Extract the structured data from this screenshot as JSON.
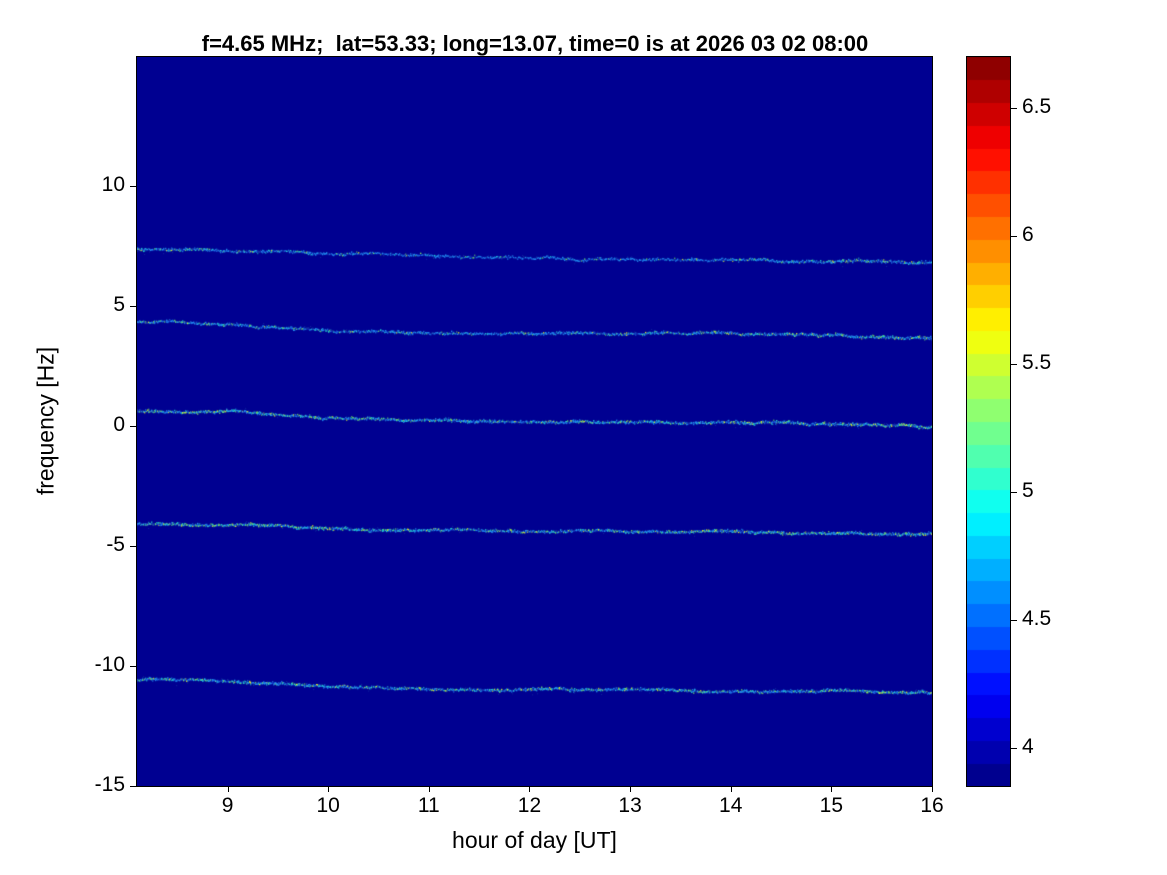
{
  "chart_data": {
    "type": "heatmap",
    "title": "f=4.65 MHz;  lat=53.33; long=13.07, time=0 is at 2026 03 02 08:00",
    "xlabel": "hour of day [UT]",
    "ylabel": "frequency [Hz]",
    "xlim": [
      8.1,
      16
    ],
    "ylim": [
      -15,
      15.35
    ],
    "xticks": [
      9,
      10,
      11,
      12,
      13,
      14,
      15,
      16
    ],
    "yticks": [
      -15,
      -10,
      -5,
      0,
      5,
      10
    ],
    "grid": false,
    "colormap": "jet",
    "background_value": 3.9,
    "background_color": "#000091",
    "colorbar": {
      "min": 3.85,
      "max": 6.7,
      "ticks": [
        4,
        4.5,
        5,
        5.5,
        6,
        6.5
      ],
      "levels": 32,
      "position": "right"
    },
    "trace_palette": {
      "dim": "#16329f",
      "base": "#1e50e0",
      "bright": "#2090f0",
      "cyan": "#20d8c8",
      "green": "#70e060",
      "yellow": "#e6f020"
    },
    "series": [
      {
        "name": "doppler-trace-+7Hz",
        "points": [
          [
            8.1,
            7.35
          ],
          [
            8.6,
            7.3
          ],
          [
            9.0,
            7.28
          ],
          [
            9.6,
            7.2
          ],
          [
            10.2,
            7.12
          ],
          [
            11,
            7.05
          ],
          [
            12,
            6.98
          ],
          [
            13,
            6.92
          ],
          [
            14,
            6.88
          ],
          [
            15,
            6.85
          ],
          [
            15.6,
            6.82
          ],
          [
            16,
            6.78
          ]
        ],
        "profile": [
          [
            8.1,
            0.55
          ],
          [
            9.0,
            0.45
          ],
          [
            10,
            0.25
          ],
          [
            11,
            0.18
          ],
          [
            12,
            0.18
          ],
          [
            13,
            0.2
          ],
          [
            14,
            0.3
          ],
          [
            15,
            0.5
          ],
          [
            16,
            0.6
          ]
        ]
      },
      {
        "name": "doppler-trace-+4Hz",
        "points": [
          [
            8.1,
            4.3
          ],
          [
            9.0,
            4.22
          ],
          [
            9.4,
            4.12
          ],
          [
            9.8,
            4.0
          ],
          [
            10.2,
            3.92
          ],
          [
            10.8,
            3.88
          ],
          [
            11.5,
            3.85
          ],
          [
            12.5,
            3.82
          ],
          [
            13.5,
            3.82
          ],
          [
            14.5,
            3.8
          ],
          [
            15.3,
            3.75
          ],
          [
            16,
            3.68
          ]
        ],
        "profile": [
          [
            8.1,
            0.55
          ],
          [
            9.5,
            0.5
          ],
          [
            10.5,
            0.3
          ],
          [
            11.5,
            0.32
          ],
          [
            12.5,
            0.45
          ],
          [
            13.5,
            0.55
          ],
          [
            14.5,
            0.65
          ],
          [
            16,
            0.75
          ]
        ]
      },
      {
        "name": "doppler-trace-0Hz",
        "points": [
          [
            8.1,
            0.6
          ],
          [
            8.8,
            0.58
          ],
          [
            9.3,
            0.5
          ],
          [
            9.8,
            0.38
          ],
          [
            10.3,
            0.28
          ],
          [
            11,
            0.22
          ],
          [
            12,
            0.18
          ],
          [
            13,
            0.12
          ],
          [
            14,
            0.1
          ],
          [
            15,
            0.06
          ],
          [
            16,
            0.0
          ]
        ],
        "profile": [
          [
            8.1,
            0.8
          ],
          [
            9,
            0.75
          ],
          [
            10,
            0.6
          ],
          [
            11,
            0.55
          ],
          [
            12,
            0.6
          ],
          [
            13,
            0.65
          ],
          [
            14,
            0.7
          ],
          [
            15,
            0.75
          ],
          [
            16,
            0.85
          ]
        ]
      },
      {
        "name": "doppler-trace--4Hz",
        "points": [
          [
            8.1,
            -4.1
          ],
          [
            9,
            -4.15
          ],
          [
            9.6,
            -4.22
          ],
          [
            10.2,
            -4.3
          ],
          [
            11,
            -4.35
          ],
          [
            12,
            -4.38
          ],
          [
            13,
            -4.4
          ],
          [
            14,
            -4.45
          ],
          [
            15,
            -4.48
          ],
          [
            16,
            -4.52
          ]
        ],
        "profile": [
          [
            8.1,
            0.85
          ],
          [
            9.5,
            0.8
          ],
          [
            11,
            0.6
          ],
          [
            12,
            0.6
          ],
          [
            13,
            0.65
          ],
          [
            14,
            0.7
          ],
          [
            15,
            0.75
          ],
          [
            16,
            0.85
          ]
        ]
      },
      {
        "name": "doppler-trace--11Hz",
        "points": [
          [
            8.1,
            -10.6
          ],
          [
            8.8,
            -10.65
          ],
          [
            9.4,
            -10.72
          ],
          [
            10,
            -10.85
          ],
          [
            10.6,
            -10.95
          ],
          [
            11.5,
            -11.0
          ],
          [
            12.5,
            -11.0
          ],
          [
            13.5,
            -11.02
          ],
          [
            14.5,
            -11.05
          ],
          [
            15.5,
            -11.1
          ],
          [
            16,
            -11.1
          ]
        ],
        "profile": [
          [
            8.1,
            0.7
          ],
          [
            9,
            0.65
          ],
          [
            10,
            0.6
          ],
          [
            11,
            0.6
          ],
          [
            12,
            0.7
          ],
          [
            13,
            0.62
          ],
          [
            14,
            0.65
          ],
          [
            15,
            0.7
          ],
          [
            16,
            0.75
          ]
        ]
      }
    ]
  }
}
